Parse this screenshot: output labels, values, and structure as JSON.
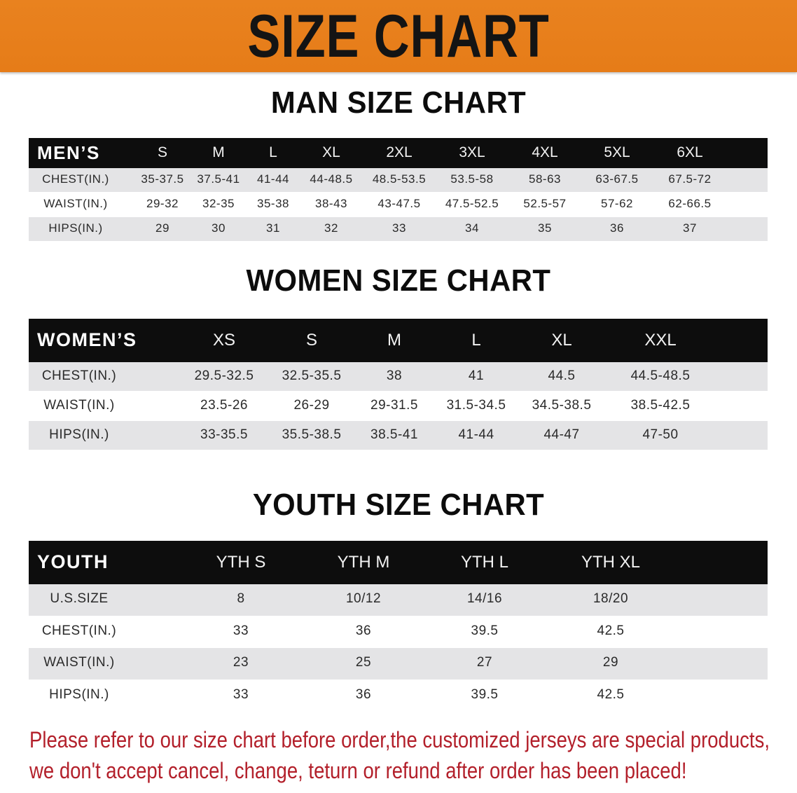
{
  "banner": {
    "title": "SIZE CHART",
    "color": "#e8801e"
  },
  "men": {
    "title": "MAN SIZE CHART",
    "header_label": "MEN’S",
    "sizes": [
      "S",
      "M",
      "L",
      "XL",
      "2XL",
      "3XL",
      "4XL",
      "5XL",
      "6XL"
    ],
    "rows": [
      {
        "label": "CHEST(IN.)",
        "values": [
          "35-37.5",
          "37.5-41",
          "41-44",
          "44-48.5",
          "48.5-53.5",
          "53.5-58",
          "58-63",
          "63-67.5",
          "67.5-72"
        ]
      },
      {
        "label": "WAIST(IN.)",
        "values": [
          "29-32",
          "32-35",
          "35-38",
          "38-43",
          "43-47.5",
          "47.5-52.5",
          "52.5-57",
          "57-62",
          "62-66.5"
        ]
      },
      {
        "label": "HIPS(IN.)",
        "values": [
          "29",
          "30",
          "31",
          "32",
          "33",
          "34",
          "35",
          "36",
          "37"
        ]
      }
    ]
  },
  "women": {
    "title": "WOMEN SIZE CHART",
    "header_label": "WOMEN’S",
    "sizes": [
      "XS",
      "S",
      "M",
      "L",
      "XL",
      "XXL"
    ],
    "rows": [
      {
        "label": "CHEST(IN.)",
        "values": [
          "29.5-32.5",
          "32.5-35.5",
          "38",
          "41",
          "44.5",
          "44.5-48.5"
        ]
      },
      {
        "label": "WAIST(IN.)",
        "values": [
          "23.5-26",
          "26-29",
          "29-31.5",
          "31.5-34.5",
          "34.5-38.5",
          "38.5-42.5"
        ]
      },
      {
        "label": "HIPS(IN.)",
        "values": [
          "33-35.5",
          "35.5-38.5",
          "38.5-41",
          "41-44",
          "44-47",
          "47-50"
        ]
      }
    ]
  },
  "youth": {
    "title": "YOUTH SIZE CHART",
    "header_label": "YOUTH",
    "sizes": [
      "YTH S",
      "YTH M",
      "YTH L",
      "YTH XL"
    ],
    "rows": [
      {
        "label": "U.S.SIZE",
        "values": [
          "8",
          "10/12",
          "14/16",
          "18/20"
        ]
      },
      {
        "label": "CHEST(IN.)",
        "values": [
          "33",
          "36",
          "39.5",
          "42.5"
        ]
      },
      {
        "label": "WAIST(IN.)",
        "values": [
          "23",
          "25",
          "27",
          "29"
        ]
      },
      {
        "label": "HIPS(IN.)",
        "values": [
          "33",
          "36",
          "39.5",
          "42.5"
        ]
      }
    ]
  },
  "notice": {
    "line1": "Please refer to our size chart before order,the customized jerseys are special products,",
    "line2": "we don't accept cancel, change, teturn or refund after order has been placed!",
    "color": "#b3202b"
  }
}
